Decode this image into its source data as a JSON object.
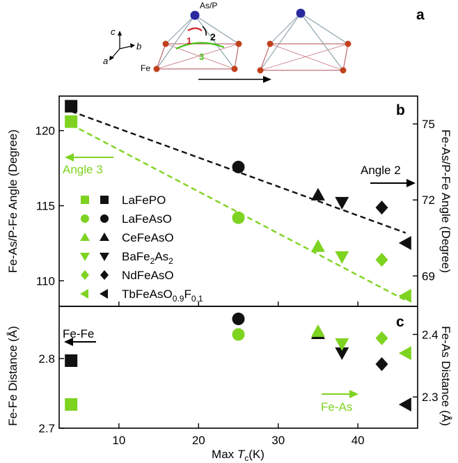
{
  "figure": {
    "panel_a": {
      "label": "a",
      "atom_top": "As/P",
      "atom_base": "Fe",
      "angle_labels": [
        "1",
        "2",
        "3"
      ],
      "axes": [
        "c",
        "b",
        "a"
      ]
    },
    "colors": {
      "green": "#7ed321",
      "black": "#111111",
      "frame": "#000000"
    }
  },
  "chart_data": [
    {
      "type": "scatter",
      "panel": "b",
      "label": "b",
      "xlim": [
        2.5,
        47.5
      ],
      "ylim": [
        108.3,
        122.3
      ],
      "y2lim": [
        67.8,
        76.1
      ],
      "ylabel": "Fe-As/P-Fe Angle (Degree)",
      "y2label": "Fe-As/P-Fe Angle (Degree)",
      "yticks": [
        110,
        115,
        120
      ],
      "y2ticks": [
        69,
        72,
        75
      ],
      "annotations": [
        "Angle 3",
        "Angle 2"
      ],
      "legend": [
        {
          "text": "LaFePO",
          "marker": "square"
        },
        {
          "text": "LaFeAsO",
          "marker": "circle"
        },
        {
          "text": "CeFeAsO",
          "marker": "triangle-up"
        },
        {
          "text": "BaFe2As2",
          "base": "BaFe",
          "sub1": "2",
          "mid": "As",
          "sub2": "2",
          "marker": "triangle-down"
        },
        {
          "text": "NdFeAsO",
          "marker": "diamond"
        },
        {
          "text": "TbFeAsO0.9F0.1",
          "base": "TbFeAsO",
          "sub1": "0.9",
          "mid": "F",
          "sub2": "0.1",
          "marker": "triangle-left"
        }
      ],
      "series": [
        {
          "axis": "left",
          "color": "#7ed321",
          "points": [
            {
              "x": 4,
              "y": 120.6,
              "marker": "square"
            },
            {
              "x": 25,
              "y": 114.2,
              "marker": "circle"
            },
            {
              "x": 35,
              "y": 112.3,
              "marker": "triangle-up"
            },
            {
              "x": 38,
              "y": 111.6,
              "marker": "triangle-down"
            },
            {
              "x": 43,
              "y": 111.4,
              "marker": "diamond"
            },
            {
              "x": 46,
              "y": 109.0,
              "marker": "triangle-left"
            }
          ],
          "fit": [
            [
              4,
              120.4
            ],
            [
              46,
              108.7
            ]
          ]
        },
        {
          "axis": "right",
          "color": "#111111",
          "points": [
            {
              "x": 4,
              "y": 75.7,
              "marker": "square"
            },
            {
              "x": 25,
              "y": 73.3,
              "marker": "circle"
            },
            {
              "x": 35,
              "y": 72.2,
              "marker": "triangle-up"
            },
            {
              "x": 38,
              "y": 71.9,
              "marker": "triangle-down"
            },
            {
              "x": 43,
              "y": 71.7,
              "marker": "diamond"
            },
            {
              "x": 46,
              "y": 70.3,
              "marker": "triangle-left"
            }
          ],
          "fit": [
            [
              4,
              75.5
            ],
            [
              46,
              70.7
            ]
          ]
        }
      ]
    },
    {
      "type": "scatter",
      "panel": "c",
      "label": "c",
      "xlim": [
        2.5,
        47.5
      ],
      "ylim": [
        2.7,
        2.875
      ],
      "y2lim": [
        2.25,
        2.445
      ],
      "xlabel": "Max Tc(K)",
      "xlabel_main": "Max ",
      "xlabel_T": "T",
      "xlabel_sub": "c",
      "xlabel_unit": "(K)",
      "ylabel": "Fe-Fe Distance (Å)",
      "y2label": "Fe-As Distance (Å)",
      "xticks": [
        10,
        20,
        30,
        40
      ],
      "yticks": [
        2.7,
        2.8
      ],
      "y2ticks": [
        2.3,
        2.4
      ],
      "annotations": [
        "Fe-Fe",
        "Fe-As"
      ],
      "series": [
        {
          "axis": "left",
          "color": "#111111",
          "points": [
            {
              "x": 4,
              "y": 2.797,
              "marker": "square"
            },
            {
              "x": 25,
              "y": 2.857,
              "marker": "circle"
            },
            {
              "x": 35,
              "y": 2.836,
              "marker": "triangle-up"
            },
            {
              "x": 38,
              "y": 2.808,
              "marker": "triangle-down"
            },
            {
              "x": 43,
              "y": 2.792,
              "marker": "diamond"
            },
            {
              "x": 46,
              "y": 2.734,
              "marker": "triangle-left"
            }
          ]
        },
        {
          "axis": "right",
          "color": "#7ed321",
          "points": [
            {
              "x": 4,
              "y": 2.288,
              "marker": "square"
            },
            {
              "x": 25,
              "y": 2.4,
              "marker": "circle"
            },
            {
              "x": 35,
              "y": 2.405,
              "marker": "triangle-up"
            },
            {
              "x": 38,
              "y": 2.385,
              "marker": "triangle-down"
            },
            {
              "x": 43,
              "y": 2.394,
              "marker": "diamond"
            },
            {
              "x": 46,
              "y": 2.37,
              "marker": "triangle-left"
            }
          ]
        }
      ]
    }
  ]
}
